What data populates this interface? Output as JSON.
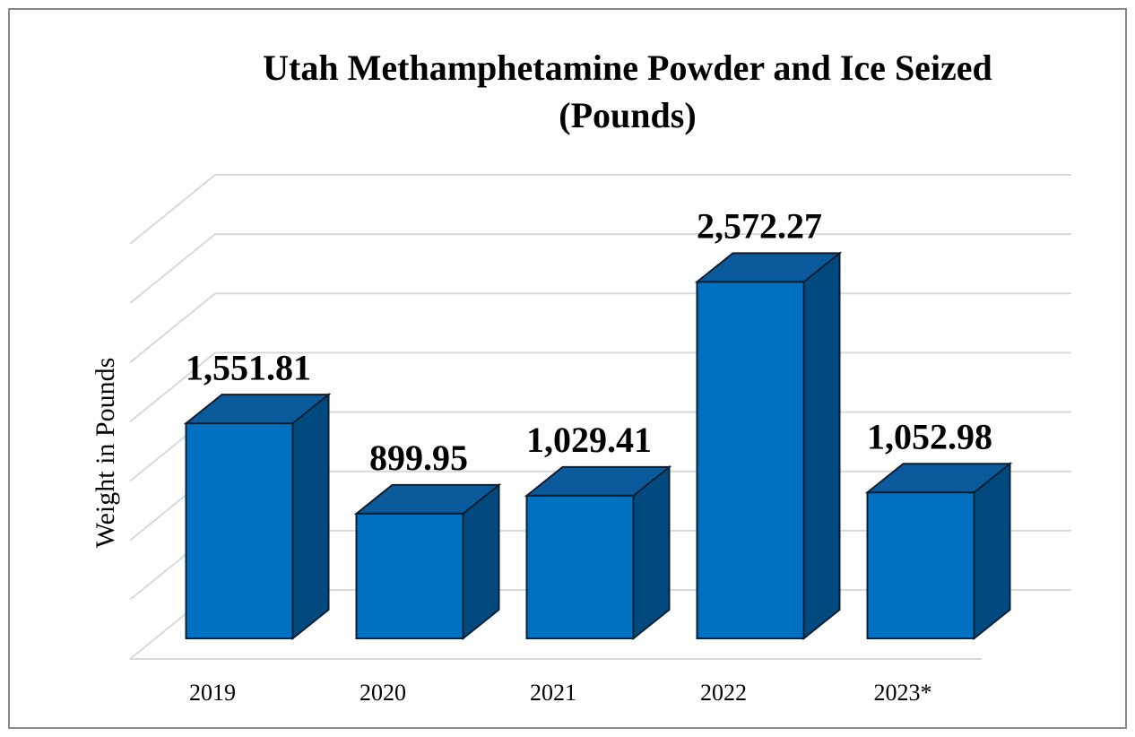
{
  "chart_data": {
    "type": "bar3d",
    "title": "Utah Methamphetamine Powder and Ice Seized",
    "subtitle": "(Pounds)",
    "y_label": "Weight in Pounds",
    "categories": [
      "2019",
      "2020",
      "2021",
      "2022",
      "2023*"
    ],
    "values": [
      1551.81,
      899.95,
      1029.41,
      2572.27,
      1052.98
    ],
    "value_labels": [
      "1,551.81",
      "899.95",
      "1,029.41",
      "2,572.27",
      "1,052.98"
    ],
    "color": "#0070c0",
    "ylim": [
      0,
      3500
    ],
    "yticks": [
      0,
      500,
      1000,
      1500,
      2000,
      2500,
      3000,
      3500
    ],
    "grid": true
  }
}
